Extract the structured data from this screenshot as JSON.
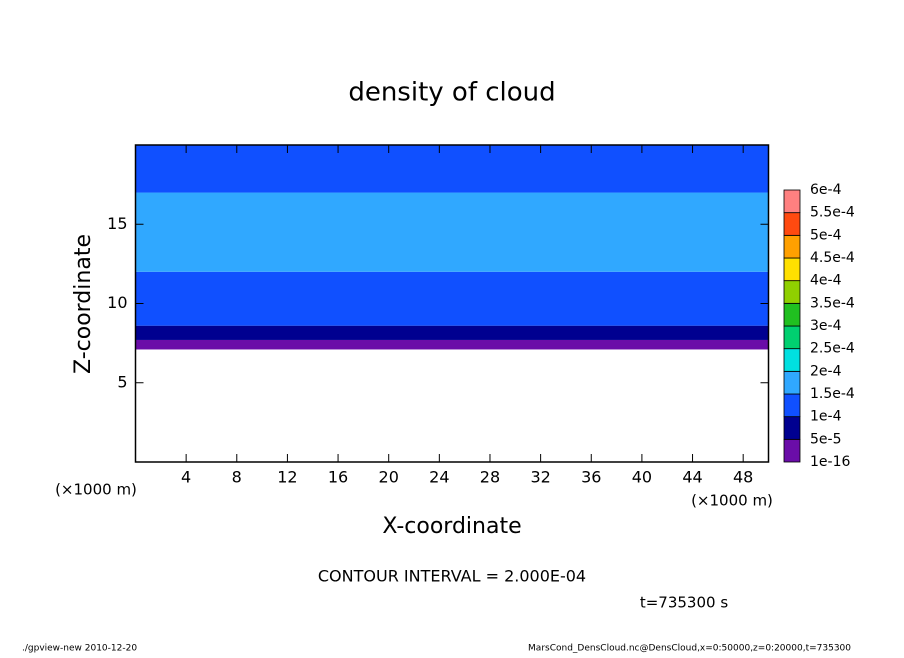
{
  "chart_data": {
    "type": "contour",
    "title": "density of cloud",
    "xlabel": "X-coordinate",
    "ylabel": "Z-coordinate",
    "x_unit": "(×1000 m)",
    "y_unit": "(×1000 m)",
    "annotations": [
      "CONTOUR INTERVAL = 2.000E-04",
      "t=735300 s"
    ],
    "footer_left": "./gpview-new  2010-12-20",
    "footer_right": "MarsCond_DensCloud.nc@DensCloud,x=0:50000,z=0:20000,t=735300",
    "xlim": [
      0,
      50
    ],
    "ylim": [
      0,
      20
    ],
    "xticks": [
      4,
      8,
      12,
      16,
      20,
      24,
      28,
      32,
      36,
      40,
      44,
      48
    ],
    "yticks": [
      5,
      10,
      15
    ],
    "layers": [
      {
        "z": [
          7.1,
          7.7
        ],
        "value": 3e-05
      },
      {
        "z": [
          7.7,
          8.6
        ],
        "value": 7e-05
      },
      {
        "z": [
          8.6,
          12.0
        ],
        "value": 0.00012
      },
      {
        "z": [
          12.0,
          17.0
        ],
        "value": 0.00016
      },
      {
        "z": [
          17.0,
          20.0
        ],
        "value": 0.00012
      }
    ],
    "levels": [
      {
        "value": 1e-16,
        "label": "1e-16"
      },
      {
        "value": 5e-05,
        "label": "5e-5"
      },
      {
        "value": 0.0001,
        "label": "1e-4"
      },
      {
        "value": 0.00015,
        "label": "1.5e-4"
      },
      {
        "value": 0.0002,
        "label": "2e-4"
      },
      {
        "value": 0.00025,
        "label": "2.5e-4"
      },
      {
        "value": 0.0003,
        "label": "3e-4"
      },
      {
        "value": 0.00035,
        "label": "3.5e-4"
      },
      {
        "value": 0.0004,
        "label": "4e-4"
      },
      {
        "value": 0.00045,
        "label": "4.5e-4"
      },
      {
        "value": 0.0005,
        "label": "5e-4"
      },
      {
        "value": 0.00055,
        "label": "5.5e-4"
      },
      {
        "value": 0.0006,
        "label": "6e-4"
      }
    ],
    "level_colors": [
      "#6a0da8",
      "#000090",
      "#1050ff",
      "#30a8ff",
      "#00e0e0",
      "#00d070",
      "#20c020",
      "#90d000",
      "#ffe000",
      "#ffa000",
      "#ff4a10",
      "#ff8080"
    ]
  }
}
